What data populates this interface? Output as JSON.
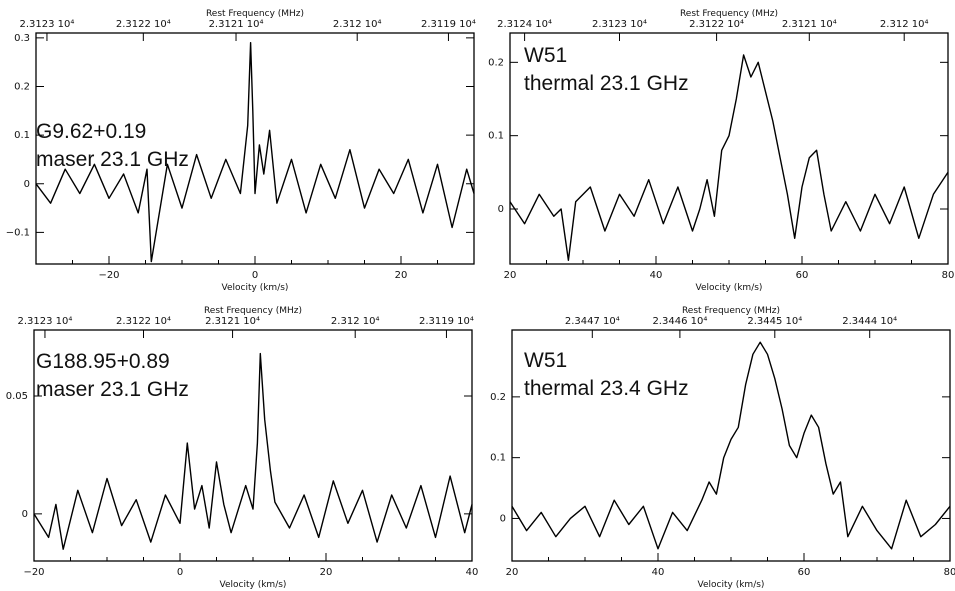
{
  "chart_data": [
    {
      "type": "line",
      "annotation": [
        "G9.62+0.19",
        "maser 23.1 GHz"
      ],
      "xlabel": "Velocity (km/s)",
      "x2label": "Rest Frequency (MHz)",
      "xlim": [
        -30,
        30
      ],
      "ylim": [
        -0.165,
        0.31
      ],
      "xticks": [
        {
          "v": -20,
          "label": "−20"
        },
        {
          "v": 0,
          "label": "0"
        },
        {
          "v": 20,
          "label": "20"
        }
      ],
      "yticks": [
        {
          "v": -0.1,
          "label": "−0.1"
        },
        {
          "v": 0,
          "label": "0"
        },
        {
          "v": 0.1,
          "label": "0.1"
        },
        {
          "v": 0.2,
          "label": "0.2"
        },
        {
          "v": 0.3,
          "label": "0.3"
        }
      ],
      "top_ticks": [
        {
          "v": -28.5,
          "label": "2.3123 10⁴"
        },
        {
          "v": -15.3,
          "label": "2.3122 10⁴"
        },
        {
          "v": -2.6,
          "label": "2.3121 10⁴"
        },
        {
          "v": 14.0,
          "label": "2.312 10⁴"
        },
        {
          "v": 26.5,
          "label": "2.3119 10⁴"
        }
      ],
      "series": [
        {
          "x": [
            -30,
            -28,
            -26,
            -24,
            -22,
            -20,
            -18,
            -16,
            -14.8,
            -14.2,
            -12,
            -10,
            -8,
            -6,
            -4,
            -2,
            -1,
            -0.6,
            -0.3,
            0,
            0.6,
            1.2,
            2,
            3,
            5,
            7,
            9,
            11,
            13,
            15,
            17,
            19,
            21,
            23,
            25,
            27,
            29,
            30
          ],
          "y": [
            0.0,
            -0.04,
            0.03,
            -0.02,
            0.04,
            -0.03,
            0.02,
            -0.06,
            0.03,
            -0.16,
            0.04,
            -0.05,
            0.06,
            -0.03,
            0.05,
            -0.02,
            0.12,
            0.29,
            0.15,
            -0.02,
            0.08,
            0.02,
            0.11,
            -0.04,
            0.05,
            -0.06,
            0.04,
            -0.03,
            0.07,
            -0.05,
            0.03,
            -0.02,
            0.05,
            -0.06,
            0.04,
            -0.09,
            0.03,
            -0.02
          ]
        }
      ]
    },
    {
      "type": "line",
      "annotation": [
        "W51",
        "thermal 23.1 GHz"
      ],
      "xlabel": "Velocity (km/s)",
      "x2label": "Rest Frequency (MHz)",
      "xlim": [
        20,
        80
      ],
      "ylim": [
        -0.075,
        0.24
      ],
      "xticks": [
        {
          "v": 20,
          "label": "20"
        },
        {
          "v": 40,
          "label": "40"
        },
        {
          "v": 60,
          "label": "60"
        },
        {
          "v": 80,
          "label": "80"
        }
      ],
      "yticks": [
        {
          "v": 0,
          "label": "0"
        },
        {
          "v": 0.1,
          "label": "0.1"
        },
        {
          "v": 0.2,
          "label": "0.2"
        }
      ],
      "top_ticks": [
        {
          "v": 22.0,
          "label": "2.3124 10⁴"
        },
        {
          "v": 35.0,
          "label": "2.3123 10⁴"
        },
        {
          "v": 48.3,
          "label": "2.3122 10⁴"
        },
        {
          "v": 61.0,
          "label": "2.3121 10⁴"
        },
        {
          "v": 74.0,
          "label": "2.312 10⁴"
        }
      ],
      "series": [
        {
          "x": [
            20,
            22,
            24,
            26,
            27,
            28,
            29,
            31,
            33,
            35,
            37,
            39,
            41,
            43,
            45,
            46,
            47,
            48,
            49,
            50,
            51,
            52,
            53,
            54,
            55,
            56,
            57,
            58,
            59,
            60,
            61,
            62,
            63,
            64,
            66,
            68,
            70,
            72,
            74,
            76,
            78,
            80
          ],
          "y": [
            0.01,
            -0.02,
            0.02,
            -0.01,
            0.0,
            -0.07,
            0.01,
            0.03,
            -0.03,
            0.02,
            -0.01,
            0.04,
            -0.02,
            0.03,
            -0.03,
            0.0,
            0.04,
            -0.01,
            0.08,
            0.1,
            0.15,
            0.21,
            0.18,
            0.2,
            0.16,
            0.12,
            0.07,
            0.02,
            -0.04,
            0.03,
            0.07,
            0.08,
            0.02,
            -0.03,
            0.01,
            -0.03,
            0.02,
            -0.02,
            0.03,
            -0.04,
            0.02,
            0.05
          ]
        }
      ]
    },
    {
      "type": "line",
      "annotation": [
        "G188.95+0.89",
        "maser 23.1 GHz"
      ],
      "xlabel": "Velocity (km/s)",
      "x2label": "Rest Frequency (MHz)",
      "xlim": [
        -20,
        40
      ],
      "ylim": [
        -0.02,
        0.078
      ],
      "xticks": [
        {
          "v": -20,
          "label": "−20"
        },
        {
          "v": 0,
          "label": "0"
        },
        {
          "v": 20,
          "label": "20"
        },
        {
          "v": 40,
          "label": "40"
        }
      ],
      "yticks": [
        {
          "v": 0,
          "label": "0"
        },
        {
          "v": 0.05,
          "label": "0.05"
        }
      ],
      "top_ticks": [
        {
          "v": -18.5,
          "label": "2.3123 10⁴"
        },
        {
          "v": -5.0,
          "label": "2.3122 10⁴"
        },
        {
          "v": 7.2,
          "label": "2.3121 10⁴"
        },
        {
          "v": 24.0,
          "label": "2.312 10⁴"
        },
        {
          "v": 36.5,
          "label": "2.3119 10⁴"
        }
      ],
      "series": [
        {
          "x": [
            -20,
            -18,
            -17,
            -16,
            -14,
            -12,
            -10,
            -8,
            -6,
            -4,
            -2,
            0,
            1,
            2,
            3,
            4,
            5,
            6,
            7,
            8,
            9,
            10,
            10.6,
            11,
            11.6,
            12.4,
            13,
            15,
            17,
            19,
            21,
            23,
            25,
            27,
            29,
            31,
            33,
            35,
            37,
            39,
            40
          ],
          "y": [
            0.0,
            -0.01,
            0.004,
            -0.015,
            0.01,
            -0.008,
            0.015,
            -0.005,
            0.006,
            -0.012,
            0.008,
            -0.004,
            0.03,
            0.002,
            0.012,
            -0.006,
            0.022,
            0.004,
            -0.008,
            0.002,
            0.012,
            0.002,
            0.03,
            0.068,
            0.04,
            0.018,
            0.005,
            -0.006,
            0.008,
            -0.01,
            0.014,
            -0.004,
            0.01,
            -0.012,
            0.008,
            -0.006,
            0.012,
            -0.01,
            0.016,
            -0.008,
            0.004
          ]
        }
      ]
    },
    {
      "type": "line",
      "annotation": [
        "W51",
        "thermal 23.4 GHz"
      ],
      "xlabel": "Velocity (km/s)",
      "x2label": "Rest Frequency (MHz)",
      "xlim": [
        20,
        80
      ],
      "ylim": [
        -0.07,
        0.31
      ],
      "xticks": [
        {
          "v": 20,
          "label": "20"
        },
        {
          "v": 40,
          "label": "40"
        },
        {
          "v": 60,
          "label": "60"
        },
        {
          "v": 80,
          "label": "80"
        }
      ],
      "yticks": [
        {
          "v": 0,
          "label": "0"
        },
        {
          "v": 0.1,
          "label": "0.1"
        },
        {
          "v": 0.2,
          "label": "0.2"
        }
      ],
      "top_ticks": [
        {
          "v": 31.0,
          "label": "2.3447 10⁴"
        },
        {
          "v": 43.0,
          "label": "2.3446 10⁴"
        },
        {
          "v": 56.0,
          "label": "2.3445 10⁴"
        },
        {
          "v": 69.0,
          "label": "2.3444 10⁴"
        }
      ],
      "series": [
        {
          "x": [
            20,
            22,
            24,
            26,
            28,
            30,
            32,
            34,
            36,
            38,
            40,
            42,
            44,
            46,
            47,
            48,
            49,
            50,
            51,
            52,
            53,
            54,
            55,
            56,
            57,
            58,
            59,
            60,
            61,
            62,
            63,
            64,
            65,
            66,
            68,
            70,
            72,
            74,
            76,
            78,
            80
          ],
          "y": [
            0.02,
            -0.02,
            0.01,
            -0.03,
            0.0,
            0.02,
            -0.03,
            0.03,
            -0.01,
            0.02,
            -0.05,
            0.01,
            -0.02,
            0.03,
            0.06,
            0.04,
            0.1,
            0.13,
            0.15,
            0.22,
            0.27,
            0.29,
            0.27,
            0.23,
            0.18,
            0.12,
            0.1,
            0.14,
            0.17,
            0.15,
            0.09,
            0.04,
            0.06,
            -0.03,
            0.02,
            -0.02,
            -0.05,
            0.03,
            -0.03,
            -0.01,
            0.02
          ]
        }
      ]
    }
  ]
}
